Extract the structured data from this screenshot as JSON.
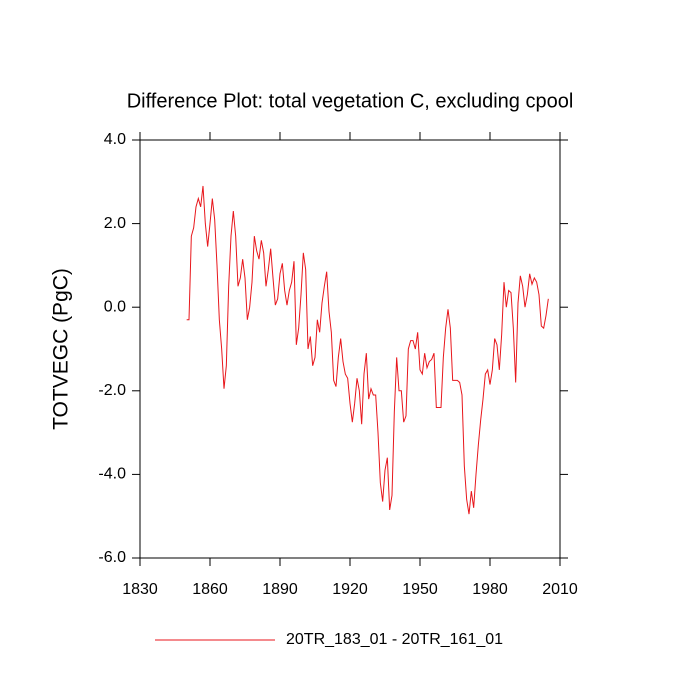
{
  "chart_data": {
    "type": "line",
    "title": "Difference Plot: total vegetation C, excluding cpool",
    "y_label": "TOTVEGC  (PgC)",
    "xlim": [
      1830,
      2010
    ],
    "xticks": [
      1830,
      1860,
      1890,
      1920,
      1950,
      1980,
      2010
    ],
    "ylim": [
      -6,
      4
    ],
    "yticks": [
      {
        "value": -6,
        "label": "-6.0"
      },
      {
        "value": -4,
        "label": "-4.0"
      },
      {
        "value": -2,
        "label": "-2.0"
      },
      {
        "value": 0,
        "label": "0.0"
      },
      {
        "value": 2,
        "label": "2.0"
      },
      {
        "value": 4,
        "label": "4.0"
      }
    ],
    "x": [
      1850,
      1851,
      1852,
      1853,
      1854,
      1855,
      1856,
      1857,
      1858,
      1859,
      1860,
      1861,
      1862,
      1863,
      1864,
      1865,
      1866,
      1867,
      1868,
      1869,
      1870,
      1871,
      1872,
      1873,
      1874,
      1875,
      1876,
      1877,
      1878,
      1879,
      1880,
      1881,
      1882,
      1883,
      1884,
      1885,
      1886,
      1887,
      1888,
      1889,
      1890,
      1891,
      1892,
      1893,
      1894,
      1895,
      1896,
      1897,
      1898,
      1899,
      1900,
      1901,
      1902,
      1903,
      1904,
      1905,
      1906,
      1907,
      1908,
      1909,
      1910,
      1911,
      1912,
      1913,
      1914,
      1915,
      1916,
      1917,
      1918,
      1919,
      1920,
      1921,
      1922,
      1923,
      1924,
      1925,
      1926,
      1927,
      1928,
      1929,
      1930,
      1931,
      1932,
      1933,
      1934,
      1935,
      1936,
      1937,
      1938,
      1939,
      1940,
      1941,
      1942,
      1943,
      1944,
      1945,
      1946,
      1947,
      1948,
      1949,
      1950,
      1951,
      1952,
      1953,
      1954,
      1955,
      1956,
      1957,
      1958,
      1959,
      1960,
      1961,
      1962,
      1963,
      1964,
      1965,
      1966,
      1967,
      1968,
      1969,
      1970,
      1971,
      1972,
      1973,
      1974,
      1975,
      1976,
      1977,
      1978,
      1979,
      1980,
      1981,
      1982,
      1983,
      1984,
      1985,
      1986,
      1987,
      1988,
      1989,
      1990,
      1991,
      1992,
      1993,
      1994,
      1995,
      1996,
      1997,
      1998,
      1999,
      2000,
      2001,
      2002,
      2003,
      2004,
      2005
    ],
    "series": [
      {
        "name": "20TR_183_01 - 20TR_161_01",
        "color": "#e8161b",
        "values": [
          -0.3,
          -0.3,
          1.7,
          1.9,
          2.4,
          2.6,
          2.4,
          2.9,
          2.0,
          1.45,
          2.0,
          2.6,
          2.1,
          1.0,
          -0.3,
          -1.0,
          -1.95,
          -1.4,
          0.5,
          1.7,
          2.3,
          1.7,
          0.5,
          0.7,
          1.15,
          0.7,
          -0.3,
          0.0,
          0.6,
          1.7,
          1.35,
          1.15,
          1.6,
          1.3,
          0.5,
          0.9,
          1.4,
          0.7,
          0.05,
          0.2,
          0.8,
          1.05,
          0.4,
          0.05,
          0.4,
          0.6,
          1.1,
          -0.9,
          -0.5,
          0.3,
          1.3,
          0.9,
          -1.0,
          -0.7,
          -1.4,
          -1.2,
          -0.3,
          -0.6,
          0.1,
          0.5,
          0.85,
          -0.1,
          -0.6,
          -1.75,
          -1.9,
          -1.2,
          -0.75,
          -1.3,
          -1.6,
          -1.7,
          -2.3,
          -2.75,
          -2.3,
          -1.7,
          -2.0,
          -2.8,
          -1.6,
          -1.1,
          -2.2,
          -1.95,
          -2.1,
          -2.1,
          -3.0,
          -4.2,
          -4.65,
          -3.9,
          -3.6,
          -4.85,
          -4.5,
          -2.5,
          -1.2,
          -2.0,
          -2.0,
          -2.75,
          -2.6,
          -1.0,
          -0.8,
          -0.8,
          -1.0,
          -0.6,
          -1.5,
          -1.6,
          -1.1,
          -1.45,
          -1.3,
          -1.25,
          -1.1,
          -2.4,
          -2.4,
          -2.4,
          -1.2,
          -0.5,
          -0.05,
          -0.5,
          -1.75,
          -1.75,
          -1.75,
          -1.8,
          -2.1,
          -3.8,
          -4.6,
          -4.95,
          -4.4,
          -4.8,
          -4.0,
          -3.3,
          -2.7,
          -2.2,
          -1.6,
          -1.5,
          -1.85,
          -1.5,
          -0.75,
          -0.9,
          -1.5,
          -0.65,
          0.6,
          0.0,
          0.4,
          0.35,
          -0.5,
          -1.8,
          0.1,
          0.75,
          0.5,
          0.0,
          0.3,
          0.8,
          0.55,
          0.7,
          0.6,
          0.3,
          -0.45,
          -0.5,
          -0.2,
          0.2
        ]
      }
    ]
  }
}
